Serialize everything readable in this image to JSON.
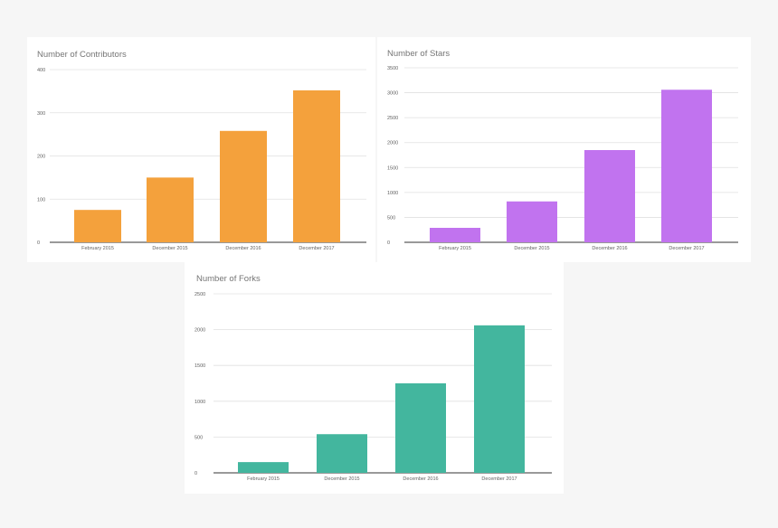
{
  "chart_data": [
    {
      "type": "bar",
      "title": "Number of Contributors",
      "categories": [
        "February 2015",
        "December 2015",
        "December 2016",
        "December 2017"
      ],
      "values": [
        75,
        150,
        258,
        352
      ],
      "yticks": [
        "0",
        "100",
        "200",
        "300",
        "400"
      ],
      "ylim": [
        0,
        400
      ],
      "color": "#f4a13c",
      "grid": true,
      "legend": "none"
    },
    {
      "type": "bar",
      "title": "Number of Stars",
      "categories": [
        "February 2015",
        "December 2015",
        "December 2016",
        "December 2017"
      ],
      "values": [
        290,
        820,
        1850,
        3060
      ],
      "yticks": [
        "0",
        "500",
        "1000",
        "1500",
        "2000",
        "2500",
        "3000",
        "3500"
      ],
      "ylim": [
        0,
        3500
      ],
      "color": "#c173ef",
      "grid": true,
      "legend": "none"
    },
    {
      "type": "bar",
      "title": "Number of Forks",
      "categories": [
        "February 2015",
        "December 2015",
        "December 2016",
        "December 2017"
      ],
      "values": [
        150,
        540,
        1250,
        2060
      ],
      "yticks": [
        "0",
        "500",
        "1000",
        "1500",
        "2000",
        "2500"
      ],
      "ylim": [
        0,
        2500
      ],
      "color": "#43b69e",
      "grid": true,
      "legend": "none"
    }
  ]
}
